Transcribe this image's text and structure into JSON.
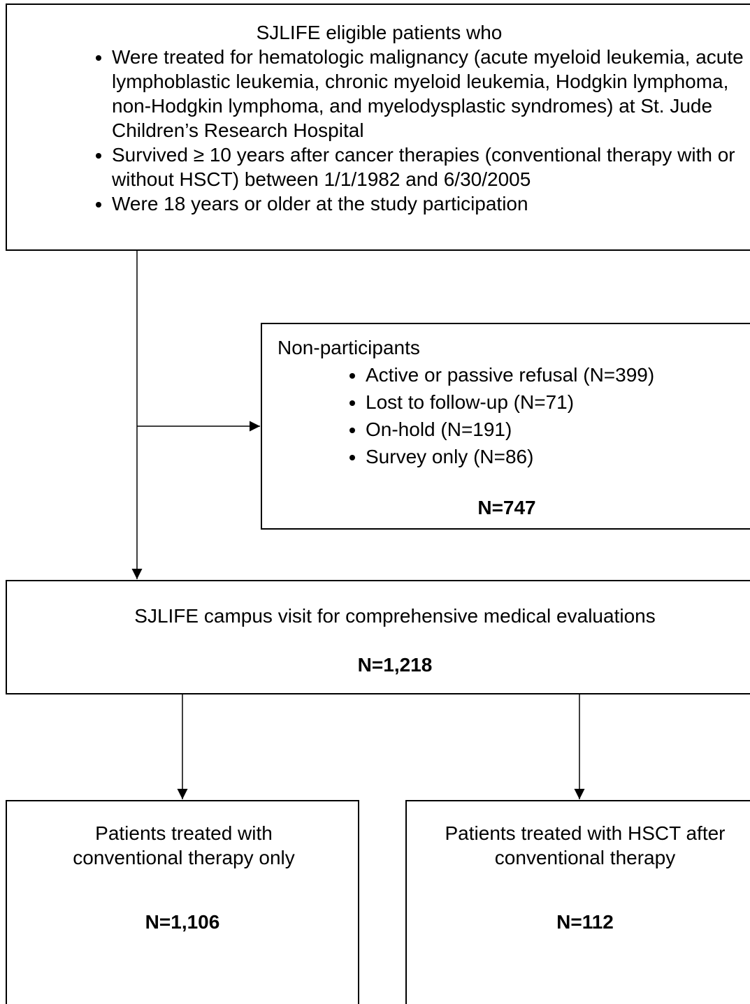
{
  "nodes": [
    {
      "title": "SJLIFE eligible patients who",
      "items": [
        "Were treated for hematologic malignancy (acute myeloid leukemia, acute lymphoblastic leukemia, chronic myeloid leukemia, Hodgkin lymphoma, non-Hodgkin lymphoma, and myelodysplastic syndromes) at St. Jude Children’s Research Hospital",
        "Survived ≥ 10 years after cancer therapies (conventional therapy with or without HSCT) between 1/1/1982 and 6/30/2005",
        "Were 18 years or older at the study participation"
      ]
    },
    {
      "title": "Non-participants",
      "items": [
        "Active or passive refusal (N=399)",
        "Lost to follow-up (N=71)",
        "On-hold (N=191)",
        "Survey only (N=86)"
      ],
      "total": "N=747"
    },
    {
      "title": "SJLIFE campus visit for comprehensive medical evaluations",
      "total": "N=1,218"
    },
    {
      "title": "Patients treated with conventional therapy only",
      "total": "N=1,106"
    },
    {
      "title": "Patients treated with HSCT after conventional therapy",
      "total": "N=112"
    }
  ]
}
